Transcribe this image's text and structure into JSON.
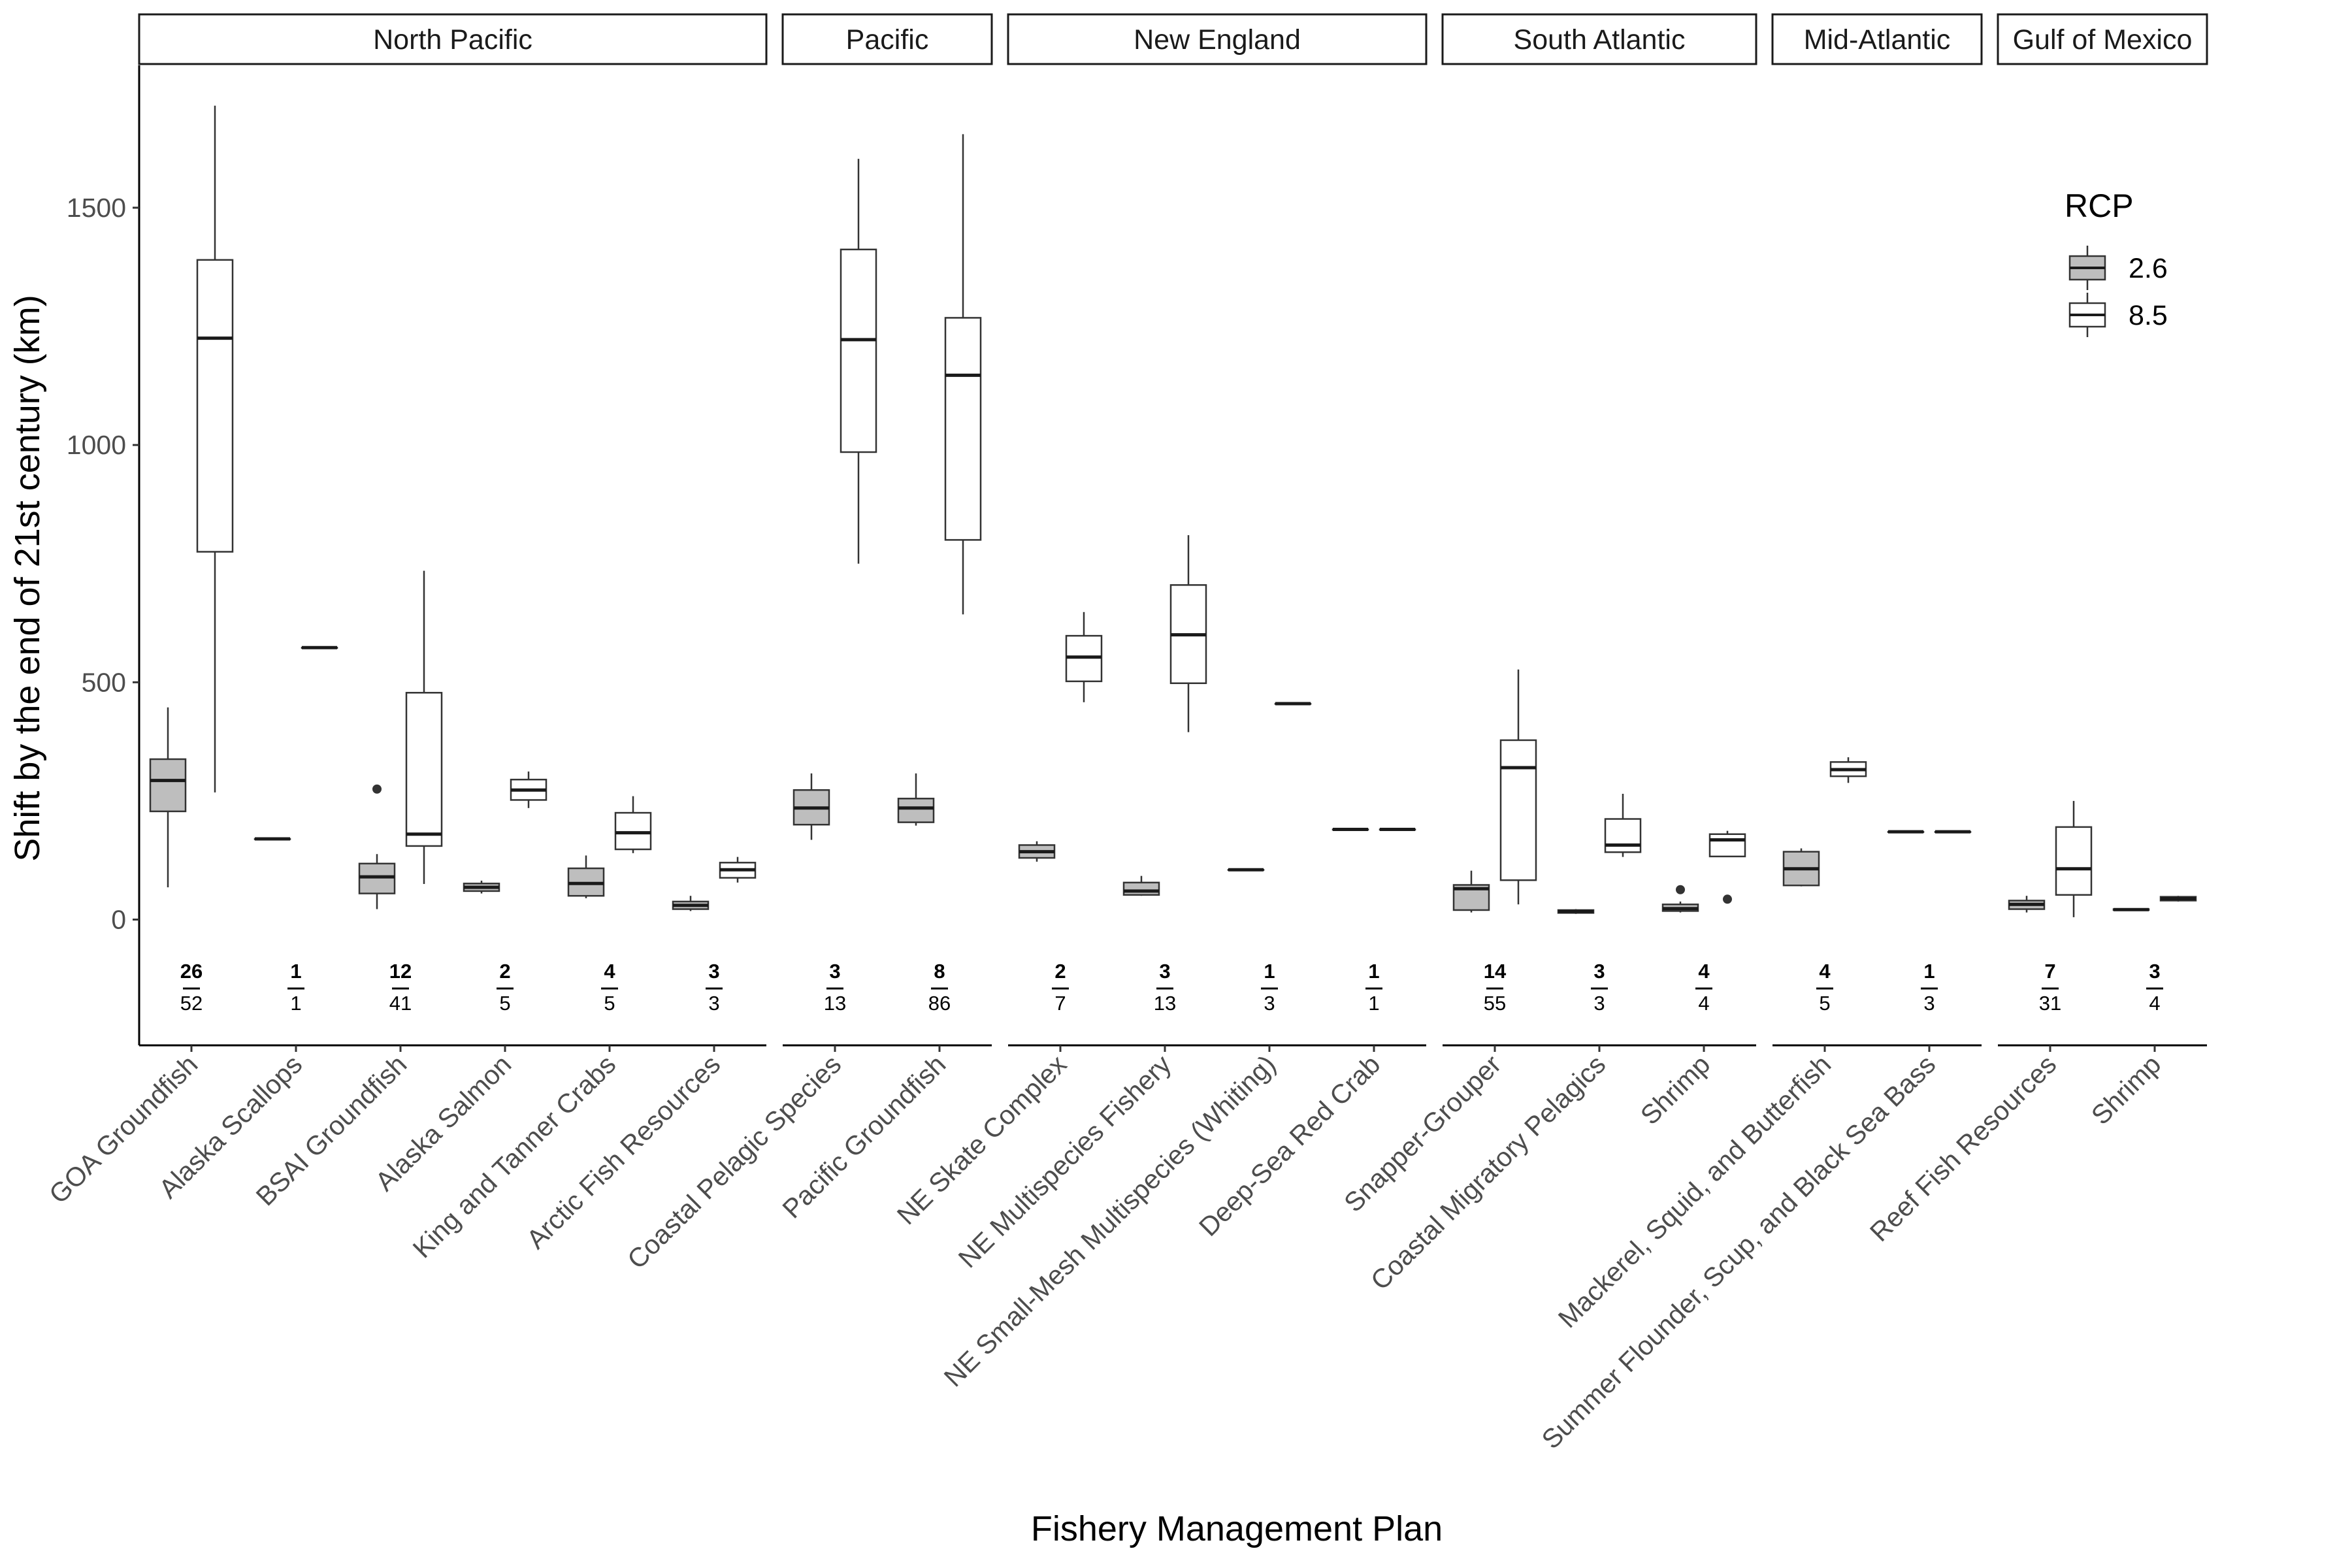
{
  "chart_data": {
    "type": "boxplot",
    "xlabel": "Fishery Management Plan",
    "ylabel": "Shift by the end of 21st century (km)",
    "ylim": [
      -265,
      1800
    ],
    "yticks": [
      0,
      500,
      1000,
      1500
    ],
    "grid": false,
    "legend": {
      "title": "RCP",
      "placement": "top-right",
      "entries": [
        "2.6",
        "8.5"
      ]
    },
    "series_colors": {
      "2.6": "#bebebe",
      "8.5": "#ffffff"
    },
    "panels": [
      {
        "name": "North Pacific",
        "groups": [
          {
            "category": "GOA Groundfish",
            "n_top": "26",
            "n_bottom": "52",
            "boxes": [
              {
                "rcp": "2.6",
                "min": 68,
                "q1": 228,
                "median": 293,
                "q3": 338,
                "max": 447,
                "outliers": []
              },
              {
                "rcp": "8.5",
                "min": 268,
                "q1": 775,
                "median": 1225,
                "q3": 1390,
                "max": 1715,
                "outliers": []
              }
            ]
          },
          {
            "category": "Alaska Scallops",
            "n_top": "1",
            "n_bottom": "1",
            "boxes": [
              {
                "rcp": "2.6",
                "min": 170,
                "q1": 170,
                "median": 170,
                "q3": 170,
                "max": 170,
                "outliers": []
              },
              {
                "rcp": "8.5",
                "min": 573,
                "q1": 573,
                "median": 573,
                "q3": 573,
                "max": 573,
                "outliers": []
              }
            ]
          },
          {
            "category": "BSAI Groundfish",
            "n_top": "12",
            "n_bottom": "41",
            "boxes": [
              {
                "rcp": "2.6",
                "min": 22,
                "q1": 55,
                "median": 90,
                "q3": 118,
                "max": 138,
                "outliers": [
                  275
                ]
              },
              {
                "rcp": "8.5",
                "min": 75,
                "q1": 155,
                "median": 180,
                "q3": 478,
                "max": 735,
                "outliers": []
              }
            ]
          },
          {
            "category": "Alaska Salmon",
            "n_top": "2",
            "n_bottom": "5",
            "boxes": [
              {
                "rcp": "2.6",
                "min": 55,
                "q1": 60,
                "median": 68,
                "q3": 76,
                "max": 82,
                "outliers": []
              },
              {
                "rcp": "8.5",
                "min": 235,
                "q1": 252,
                "median": 273,
                "q3": 295,
                "max": 312,
                "outliers": []
              }
            ]
          },
          {
            "category": "King and Tanner Crabs",
            "n_top": "4",
            "n_bottom": "5",
            "boxes": [
              {
                "rcp": "2.6",
                "min": 45,
                "q1": 50,
                "median": 76,
                "q3": 108,
                "max": 135,
                "outliers": []
              },
              {
                "rcp": "8.5",
                "min": 140,
                "q1": 148,
                "median": 183,
                "q3": 225,
                "max": 260,
                "outliers": []
              }
            ]
          },
          {
            "category": "Arctic Fish Resources",
            "n_top": "3",
            "n_bottom": "3",
            "boxes": [
              {
                "rcp": "2.6",
                "min": 18,
                "q1": 22,
                "median": 30,
                "q3": 38,
                "max": 50,
                "outliers": []
              },
              {
                "rcp": "8.5",
                "min": 78,
                "q1": 88,
                "median": 105,
                "q3": 120,
                "max": 132,
                "outliers": []
              }
            ]
          }
        ]
      },
      {
        "name": "Pacific",
        "groups": [
          {
            "category": "Coastal Pelagic Species",
            "n_top": "3",
            "n_bottom": "13",
            "boxes": [
              {
                "rcp": "2.6",
                "min": 168,
                "q1": 200,
                "median": 235,
                "q3": 273,
                "max": 308,
                "outliers": []
              },
              {
                "rcp": "8.5",
                "min": 750,
                "q1": 985,
                "median": 1222,
                "q3": 1412,
                "max": 1603,
                "outliers": []
              }
            ]
          },
          {
            "category": "Pacific Groundfish",
            "n_top": "8",
            "n_bottom": "86",
            "boxes": [
              {
                "rcp": "2.6",
                "min": 198,
                "q1": 205,
                "median": 235,
                "q3": 255,
                "max": 308,
                "outliers": []
              },
              {
                "rcp": "8.5",
                "min": 643,
                "q1": 800,
                "median": 1147,
                "q3": 1268,
                "max": 1655,
                "outliers": []
              }
            ]
          }
        ]
      },
      {
        "name": "New England",
        "groups": [
          {
            "category": "NE Skate Complex",
            "n_top": "2",
            "n_bottom": "7",
            "boxes": [
              {
                "rcp": "2.6",
                "min": 122,
                "q1": 130,
                "median": 143,
                "q3": 157,
                "max": 165,
                "outliers": []
              },
              {
                "rcp": "8.5",
                "min": 458,
                "q1": 502,
                "median": 553,
                "q3": 598,
                "max": 648,
                "outliers": []
              }
            ]
          },
          {
            "category": "NE Multispecies Fishery",
            "n_top": "3",
            "n_bottom": "13",
            "boxes": [
              {
                "rcp": "2.6",
                "min": 50,
                "q1": 52,
                "median": 60,
                "q3": 78,
                "max": 92,
                "outliers": []
              },
              {
                "rcp": "8.5",
                "min": 395,
                "q1": 498,
                "median": 600,
                "q3": 705,
                "max": 810,
                "outliers": []
              }
            ]
          },
          {
            "category": "NE Small-Mesh Multispecies (Whiting)",
            "n_top": "1",
            "n_bottom": "3",
            "boxes": [
              {
                "rcp": "2.6",
                "min": 105,
                "q1": 105,
                "median": 105,
                "q3": 105,
                "max": 105,
                "outliers": []
              },
              {
                "rcp": "8.5",
                "min": 455,
                "q1": 455,
                "median": 455,
                "q3": 455,
                "max": 455,
                "outliers": []
              }
            ]
          },
          {
            "category": "Deep-Sea Red Crab",
            "n_top": "1",
            "n_bottom": "1",
            "boxes": [
              {
                "rcp": "2.6",
                "min": 190,
                "q1": 190,
                "median": 190,
                "q3": 190,
                "max": 190,
                "outliers": []
              },
              {
                "rcp": "8.5",
                "min": 190,
                "q1": 190,
                "median": 190,
                "q3": 190,
                "max": 190,
                "outliers": []
              }
            ]
          }
        ]
      },
      {
        "name": "South Atlantic",
        "groups": [
          {
            "category": "Snapper-Grouper",
            "n_top": "14",
            "n_bottom": "55",
            "boxes": [
              {
                "rcp": "2.6",
                "min": 15,
                "q1": 20,
                "median": 65,
                "q3": 73,
                "max": 103,
                "outliers": []
              },
              {
                "rcp": "8.5",
                "min": 32,
                "q1": 83,
                "median": 320,
                "q3": 378,
                "max": 527,
                "outliers": []
              }
            ]
          },
          {
            "category": "Coastal Migratory Pelagics",
            "n_top": "3",
            "n_bottom": "3",
            "boxes": [
              {
                "rcp": "2.6",
                "min": 12,
                "q1": 14,
                "median": 17,
                "q3": 20,
                "max": 22,
                "outliers": []
              },
              {
                "rcp": "8.5",
                "min": 132,
                "q1": 142,
                "median": 157,
                "q3": 212,
                "max": 265,
                "outliers": []
              }
            ]
          },
          {
            "category": "Shrimp",
            "n_top": "4",
            "n_bottom": "4",
            "boxes": [
              {
                "rcp": "2.6",
                "min": 15,
                "q1": 18,
                "median": 23,
                "q3": 32,
                "max": 38,
                "outliers": [
                  63
                ]
              },
              {
                "rcp": "8.5",
                "min": 133,
                "q1": 133,
                "median": 168,
                "q3": 180,
                "max": 187,
                "outliers": [
                  43
                ]
              }
            ]
          }
        ]
      },
      {
        "name": "Mid-Atlantic",
        "groups": [
          {
            "category": "Mackerel, Squid, and Butterfish",
            "n_top": "4",
            "n_bottom": "5",
            "boxes": [
              {
                "rcp": "2.6",
                "min": 70,
                "q1": 72,
                "median": 107,
                "q3": 143,
                "max": 150,
                "outliers": []
              },
              {
                "rcp": "8.5",
                "min": 288,
                "q1": 302,
                "median": 316,
                "q3": 332,
                "max": 342,
                "outliers": []
              }
            ]
          },
          {
            "category": "Summer Flounder, Scup, and Black Sea Bass",
            "n_top": "1",
            "n_bottom": "3",
            "boxes": [
              {
                "rcp": "2.6",
                "min": 185,
                "q1": 185,
                "median": 185,
                "q3": 185,
                "max": 185,
                "outliers": []
              },
              {
                "rcp": "8.5",
                "min": 185,
                "q1": 185,
                "median": 185,
                "q3": 185,
                "max": 185,
                "outliers": []
              }
            ]
          }
        ]
      },
      {
        "name": "Gulf of Mexico",
        "groups": [
          {
            "category": "Reef Fish Resources",
            "n_top": "7",
            "n_bottom": "31",
            "boxes": [
              {
                "rcp": "2.6",
                "min": 15,
                "q1": 22,
                "median": 32,
                "q3": 40,
                "max": 50,
                "outliers": []
              },
              {
                "rcp": "8.5",
                "min": 5,
                "q1": 52,
                "median": 107,
                "q3": 195,
                "max": 250,
                "outliers": []
              }
            ]
          },
          {
            "category": "Shrimp",
            "n_top": "3",
            "n_bottom": "4",
            "boxes": [
              {
                "rcp": "2.6",
                "min": 20,
                "q1": 20,
                "median": 21,
                "q3": 22,
                "max": 22,
                "outliers": []
              },
              {
                "rcp": "8.5",
                "min": 38,
                "q1": 40,
                "median": 44,
                "q3": 48,
                "max": 50,
                "outliers": []
              }
            ]
          }
        ]
      }
    ]
  }
}
